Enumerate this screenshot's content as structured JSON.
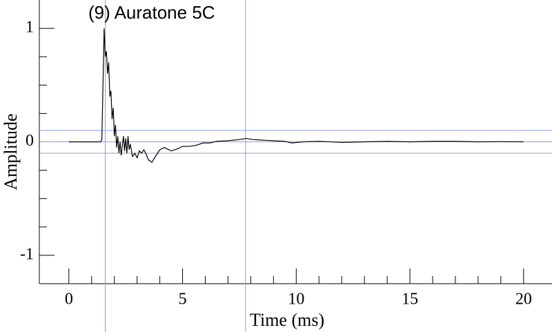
{
  "chart_data": {
    "type": "line",
    "title": "(9) Auratone 5C",
    "xlabel": "Time (ms)",
    "ylabel": "Amplitude",
    "x": [
      0,
      1.4,
      1.45,
      1.5,
      1.55,
      1.6,
      1.65,
      1.7,
      1.75,
      1.8,
      1.85,
      1.9,
      1.95,
      2.0,
      2.05,
      2.1,
      2.15,
      2.2,
      2.25,
      2.3,
      2.4,
      2.45,
      2.5,
      2.55,
      2.6,
      2.65,
      2.7,
      2.8,
      2.9,
      3.0,
      3.1,
      3.2,
      3.3,
      3.4,
      3.5,
      3.65,
      3.8,
      4.0,
      4.2,
      4.5,
      4.8,
      5.0,
      5.3,
      5.6,
      5.9,
      6.2,
      6.5,
      7.0,
      7.5,
      7.8,
      8.1,
      8.5,
      9.0,
      9.5,
      9.8,
      10.3,
      11,
      12,
      13,
      14,
      15,
      16,
      17,
      18,
      19,
      20
    ],
    "series": [
      {
        "name": "Auratone 5C",
        "color": "#000000",
        "values": [
          0,
          0,
          0.02,
          0.5,
          1.0,
          0.75,
          0.8,
          0.6,
          0.7,
          0.4,
          0.45,
          0.2,
          0.3,
          0.05,
          0.15,
          -0.05,
          0.05,
          -0.1,
          0.0,
          -0.12,
          0.05,
          -0.08,
          0.03,
          -0.1,
          0.05,
          -0.07,
          -0.02,
          -0.13,
          -0.1,
          -0.14,
          -0.08,
          -0.1,
          -0.07,
          -0.11,
          -0.16,
          -0.18,
          -0.13,
          -0.07,
          -0.05,
          -0.08,
          -0.06,
          -0.04,
          -0.04,
          -0.03,
          -0.01,
          -0.01,
          0.005,
          0.01,
          0.02,
          0.03,
          0.02,
          0.015,
          0.01,
          0.005,
          -0.01,
          0.0,
          0.005,
          -0.005,
          0.0,
          0.005,
          0.0,
          0.005,
          0.005,
          0.0,
          0.002,
          0.0
        ]
      }
    ],
    "xlim": [
      -1.3,
      21.25
    ],
    "ylim": [
      -1.25,
      1.25
    ],
    "xticks": [
      0,
      5,
      10,
      15,
      20
    ],
    "yticks": [
      -1,
      0,
      1
    ],
    "xminorticks": [
      1,
      2,
      3,
      4,
      6,
      7,
      8,
      9,
      11,
      12,
      13,
      14,
      16,
      17,
      18,
      19
    ],
    "yminorticks": [
      -0.75,
      -0.5,
      -0.25,
      0.25,
      0.5,
      0.75
    ],
    "cursor_color": "#8b9be6",
    "vlines": [
      1.6,
      7.77
    ],
    "hlines": [
      0.1,
      0,
      -0.1
    ]
  }
}
